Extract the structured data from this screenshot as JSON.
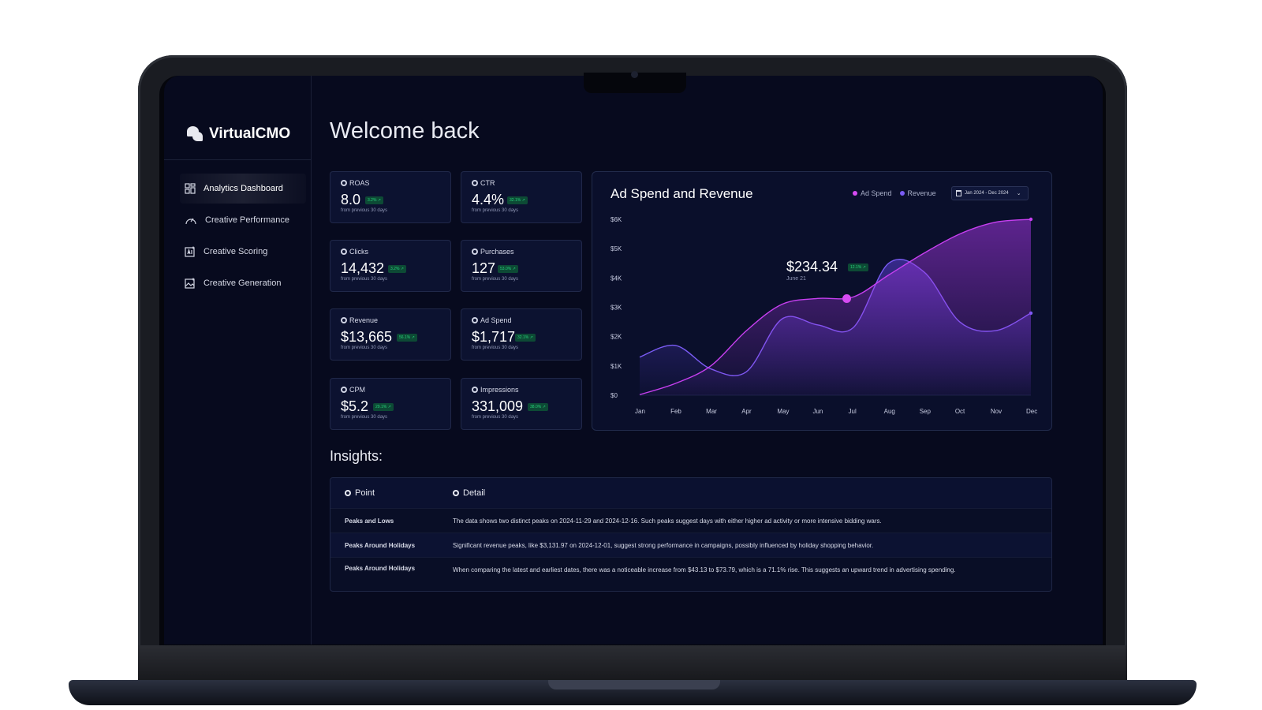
{
  "app": {
    "name": "VirtualCMO",
    "welcome": "Welcome back"
  },
  "sidebar": {
    "items": [
      {
        "label": "Analytics Dashboard",
        "icon": "dashboard-grid-icon",
        "active": true
      },
      {
        "label": "Creative Performance",
        "icon": "gauge-icon",
        "active": false
      },
      {
        "label": "Creative Scoring",
        "icon": "ai-chart-icon",
        "active": false
      },
      {
        "label": "Creative Generation",
        "icon": "image-plus-icon",
        "active": false
      }
    ]
  },
  "kpis": [
    {
      "label": "ROAS",
      "value": "8.0",
      "change": "3.2% ↗",
      "sub": "from previous 30 days"
    },
    {
      "label": "CTR",
      "value": "4.4%",
      "change": "32.1% ↗",
      "sub": "from previous 30 days"
    },
    {
      "label": "Clicks",
      "value": "14,432",
      "change": "3.2% ↗",
      "sub": "from previous 30 days"
    },
    {
      "label": "Purchases",
      "value": "127",
      "change": "53.0% ↗",
      "sub": "from previous 30 days"
    },
    {
      "label": "Revenue",
      "value": "$13,665",
      "change": "56.1% ↗",
      "sub": "from previous 30 days"
    },
    {
      "label": "Ad Spend",
      "value": "$1,717",
      "change": "32.1% ↗",
      "sub": "from previous 30 days"
    },
    {
      "label": "CPM",
      "value": "$5.2",
      "change": "29.1% ↗",
      "sub": "from previous 30 days"
    },
    {
      "label": "Impressions",
      "value": "331,009",
      "change": "38.0% ↗",
      "sub": "from previous 30 days"
    }
  ],
  "chart": {
    "title": "Ad Spend and Revenue",
    "date_range": "Jan 2024 - Dec 2024",
    "tooltip": {
      "value": "$234.34",
      "change": "12.1% ↗",
      "date": "June 21"
    }
  },
  "chart_data": {
    "type": "area",
    "categories": [
      "Jan",
      "Feb",
      "Mar",
      "Apr",
      "May",
      "Jun",
      "Jul",
      "Aug",
      "Sep",
      "Oct",
      "Nov",
      "Dec"
    ],
    "yticks": [
      "$0",
      "$1K",
      "$2K",
      "$3K",
      "$4K",
      "$5K",
      "$6K"
    ],
    "ylim": [
      0,
      6000
    ],
    "series": [
      {
        "name": "Ad Spend",
        "color": "#c73ff0",
        "values": [
          20,
          400,
          1000,
          2200,
          3100,
          3300,
          3350,
          4100,
          4850,
          5500,
          5900,
          6000
        ]
      },
      {
        "name": "Revenue",
        "color": "#7b5cf5",
        "values": [
          1300,
          1700,
          900,
          800,
          2600,
          2400,
          2300,
          4500,
          4200,
          2500,
          2200,
          2800
        ]
      }
    ]
  },
  "insights": {
    "title": "Insights:",
    "headers": [
      "Point",
      "Detail"
    ],
    "rows": [
      {
        "point": "Peaks and Lows",
        "detail": "The data shows two distinct peaks on 2024-11-29 and 2024-12-16. Such peaks suggest days with either higher ad activity or more intensive bidding wars."
      },
      {
        "point": "Peaks Around Holidays",
        "detail": "Significant revenue peaks, like $3,131.97 on 2024-12-01, suggest strong performance in campaigns, possibly influenced by holiday shopping behavior."
      },
      {
        "point": "Peaks Around Holidays",
        "detail": "When comparing the latest and earliest dates, there was a noticeable increase from $43.13 to $73.79, which is a 71.1% rise. This suggests an upward trend in advertising spending."
      }
    ]
  }
}
